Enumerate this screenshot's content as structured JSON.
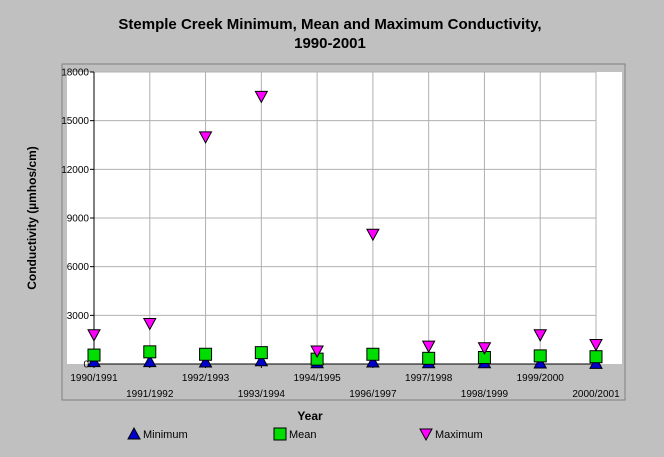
{
  "chart_data": {
    "type": "scatter",
    "title_lines": [
      "Stemple Creek Minimum, Mean and Maximum Conductivity,",
      "1990-2001"
    ],
    "xlabel": "Year",
    "ylabel": "Conductivity (µmhos/cm)",
    "ylim": [
      0,
      18000
    ],
    "yticks": [
      0,
      3000,
      6000,
      9000,
      12000,
      15000,
      18000
    ],
    "categories": [
      "1990/1991",
      "1991/1992",
      "1992/1993",
      "1993/1994",
      "1994/1995",
      "1996/1997",
      "1997/1998",
      "1998/1999",
      "1999/2000",
      "2000/2001"
    ],
    "grid": true,
    "legend_position": "bottom",
    "series": [
      {
        "name": "Minimum",
        "marker": "triangle-up",
        "color": "#0000cc",
        "values": [
          150,
          150,
          120,
          200,
          80,
          120,
          80,
          80,
          60,
          40
        ]
      },
      {
        "name": "Mean",
        "marker": "square",
        "color": "#00dd00",
        "values": [
          550,
          750,
          600,
          700,
          300,
          600,
          350,
          400,
          500,
          450
        ]
      },
      {
        "name": "Maximum",
        "marker": "triangle-down",
        "color": "#ff00ff",
        "values": [
          1800,
          2500,
          14000,
          16500,
          800,
          8000,
          1100,
          1000,
          1800,
          1200
        ]
      }
    ]
  }
}
